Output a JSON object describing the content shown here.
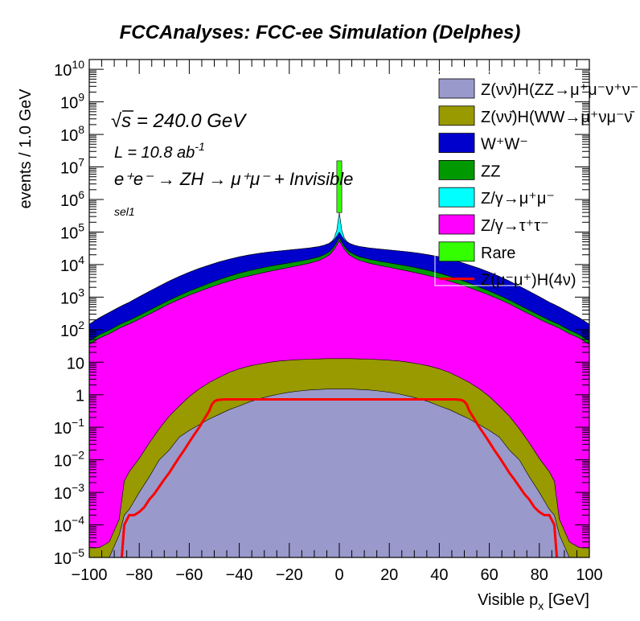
{
  "chart_data": {
    "type": "area",
    "title": "FCCAnalyses: FCC-ee Simulation (Delphes)",
    "xlabel_main": "Visible p",
    "xlabel_sub": "x",
    "xlabel_unit": " [GeV]",
    "ylabel": "events / 1.0 GeV",
    "xlim": [
      -100,
      100
    ],
    "ylim": [
      1e-05,
      20000000000.0
    ],
    "yscale": "log",
    "stacked": true,
    "grid": false,
    "legend_position": "top-right",
    "x_ticks": [
      "−100",
      "−80",
      "−60",
      "−40",
      "−20",
      "0",
      "20",
      "40",
      "60",
      "80",
      "100"
    ],
    "y_ticks": [
      {
        "base": "10",
        "exp": "−5",
        "value": 1e-05
      },
      {
        "base": "10",
        "exp": "−4",
        "value": 0.0001
      },
      {
        "base": "10",
        "exp": "−3",
        "value": 0.001
      },
      {
        "base": "10",
        "exp": "−2",
        "value": 0.01
      },
      {
        "base": "10",
        "exp": "−1",
        "value": 0.1
      },
      {
        "base": "1",
        "exp": "",
        "value": 1
      },
      {
        "base": "10",
        "exp": "",
        "value": 10
      },
      {
        "base": "10",
        "exp": "2",
        "value": 100.0
      },
      {
        "base": "10",
        "exp": "3",
        "value": 1000.0
      },
      {
        "base": "10",
        "exp": "4",
        "value": 10000.0
      },
      {
        "base": "10",
        "exp": "5",
        "value": 100000.0
      },
      {
        "base": "10",
        "exp": "6",
        "value": 1000000.0
      },
      {
        "base": "10",
        "exp": "7",
        "value": 10000000.0
      },
      {
        "base": "10",
        "exp": "8",
        "value": 100000000.0
      },
      {
        "base": "10",
        "exp": "9",
        "value": 1000000000.0
      },
      {
        "base": "10",
        "exp": "10",
        "value": 10000000000.0
      }
    ],
    "annotations": {
      "sqrt_s": "s = 240.0 GeV",
      "lumi_main": "L = 10.8 ab",
      "lumi_exp": "-1",
      "process": "e⁺e⁻ → ZH → μ⁺μ⁻ + Invisible",
      "selection": "sel1"
    },
    "x": [
      -100,
      -96,
      -92,
      -88,
      -86,
      -84,
      -80,
      -76,
      -72,
      -68,
      -64,
      -60,
      -56,
      -52,
      -48,
      -44,
      -40,
      -36,
      -32,
      -28,
      -24,
      -20,
      -16,
      -12,
      -8,
      -6,
      -4,
      -3,
      -2,
      -1,
      0,
      1,
      2,
      3,
      4,
      6,
      8,
      12,
      16,
      20,
      24,
      28,
      32,
      36,
      40,
      44,
      48,
      52,
      56,
      60,
      64,
      68,
      72,
      76,
      80,
      84,
      86,
      88,
      92,
      96,
      100
    ],
    "series": [
      {
        "name": "Z(νν̄)H(ZZ→μ⁺μ⁻ν⁺ν⁻)",
        "color": "#9999cc",
        "values": [
          1e-05,
          1e-05,
          1e-05,
          5e-05,
          0.0002,
          0.0003,
          0.001,
          0.003,
          0.01,
          0.02,
          0.05,
          0.08,
          0.12,
          0.18,
          0.25,
          0.35,
          0.45,
          0.6,
          0.75,
          0.9,
          1.05,
          1.2,
          1.3,
          1.4,
          1.45,
          1.48,
          1.5,
          1.5,
          1.5,
          1.5,
          1.5,
          1.5,
          1.5,
          1.5,
          1.5,
          1.48,
          1.45,
          1.4,
          1.3,
          1.2,
          1.05,
          0.9,
          0.75,
          0.6,
          0.45,
          0.35,
          0.25,
          0.18,
          0.12,
          0.08,
          0.05,
          0.02,
          0.01,
          0.003,
          0.001,
          0.0003,
          0.0002,
          5e-05,
          1e-05,
          1e-05,
          1e-05
        ]
      },
      {
        "name": "Z(νν̄)H(WW→μ⁺νμ⁻ν̄)",
        "color": "#999900",
        "values": [
          1e-05,
          1e-05,
          2e-05,
          0.0001,
          0.002,
          0.004,
          0.01,
          0.03,
          0.08,
          0.2,
          0.4,
          0.8,
          1.4,
          2.2,
          3.2,
          4.5,
          5.8,
          7,
          8,
          9,
          9.8,
          10.3,
          10.7,
          11,
          11.2,
          11.3,
          11.4,
          11.4,
          11.4,
          11.4,
          11.4,
          11.4,
          11.4,
          11.4,
          11.4,
          11.3,
          11.2,
          11,
          10.7,
          10.3,
          9.8,
          9,
          8,
          7,
          5.8,
          4.5,
          3.2,
          2.2,
          1.4,
          0.8,
          0.4,
          0.2,
          0.08,
          0.03,
          0.01,
          0.004,
          0.002,
          0.0001,
          2e-05,
          1e-05,
          1e-05
        ]
      },
      {
        "name": "Z/γ→τ⁺τ⁻",
        "color": "#ff00ff",
        "values": [
          35,
          55,
          75,
          110,
          130,
          150,
          210,
          300,
          430,
          620,
          850,
          1150,
          1500,
          1950,
          2500,
          3100,
          3800,
          4500,
          5300,
          6200,
          7100,
          8200,
          9400,
          11000,
          13500,
          16000,
          20000,
          24000,
          30000,
          40000,
          55000,
          40000,
          30000,
          24000,
          20000,
          16000,
          13500,
          11000,
          9400,
          8200,
          7100,
          6200,
          5300,
          4500,
          3800,
          3100,
          2500,
          1950,
          1500,
          1150,
          850,
          620,
          430,
          300,
          210,
          150,
          130,
          110,
          75,
          55,
          35
        ]
      },
      {
        "name": "ZZ",
        "color": "#009900",
        "values": [
          10,
          15,
          22,
          32,
          38,
          45,
          65,
          95,
          135,
          190,
          270,
          380,
          520,
          720,
          980,
          1300,
          1650,
          2000,
          2300,
          2600,
          2850,
          3050,
          3250,
          3500,
          3900,
          4200,
          4700,
          5300,
          6500,
          8500,
          12000,
          8500,
          6500,
          5300,
          4700,
          4200,
          3900,
          3500,
          3250,
          3050,
          2850,
          2600,
          2300,
          2000,
          1650,
          1300,
          980,
          720,
          520,
          380,
          270,
          190,
          135,
          95,
          65,
          45,
          38,
          32,
          22,
          15,
          10
        ]
      },
      {
        "name": "W⁺W⁻",
        "color": "#0000cc",
        "values": [
          100,
          160,
          240,
          350,
          420,
          500,
          750,
          1100,
          1600,
          2300,
          3200,
          4300,
          5600,
          7000,
          8600,
          10200,
          11800,
          13300,
          14500,
          15500,
          16200,
          16800,
          17300,
          17800,
          18500,
          19000,
          19800,
          20500,
          22000,
          26000,
          32000,
          26000,
          22000,
          20500,
          19800,
          19000,
          18500,
          17800,
          17300,
          16800,
          16200,
          15500,
          14500,
          13300,
          11800,
          10200,
          8600,
          7000,
          5600,
          4300,
          3200,
          2300,
          1600,
          1100,
          750,
          500,
          420,
          350,
          240,
          160,
          100
        ]
      },
      {
        "name": "Z/γ→μ⁺μ⁻",
        "color": "#00ffff",
        "values": [
          1,
          1,
          1,
          1,
          1,
          1,
          1,
          1,
          2,
          2,
          2,
          3,
          3,
          4,
          5,
          6,
          8,
          10,
          12,
          15,
          20,
          28,
          40,
          70,
          150,
          300,
          800,
          2000,
          8000,
          40000,
          300000,
          40000,
          8000,
          2000,
          800,
          300,
          150,
          70,
          40,
          28,
          20,
          15,
          12,
          10,
          8,
          6,
          5,
          4,
          3,
          3,
          2,
          2,
          2,
          1,
          1,
          1,
          1,
          1,
          1,
          1,
          1
        ]
      },
      {
        "name": "Rare",
        "color": "#33ff00",
        "values": [
          0,
          0,
          0,
          0,
          0,
          0,
          0,
          0,
          0,
          0,
          0,
          0,
          0,
          0,
          0,
          0,
          0,
          0,
          0,
          0,
          0,
          0,
          0,
          0,
          0,
          0,
          0,
          0,
          0,
          0,
          15000000.0,
          0,
          0,
          0,
          0,
          0,
          0,
          0,
          0,
          0,
          0,
          0,
          0,
          0,
          0,
          0,
          0,
          0,
          0,
          0,
          0,
          0,
          0,
          0,
          0,
          0,
          0,
          0,
          0,
          0,
          0
        ]
      }
    ],
    "signal": {
      "name": "Z(μ⁻μ⁺)H(4ν)",
      "color": "#ff0000",
      "x": [
        -87,
        -86,
        -84,
        -82,
        -80,
        -78,
        -76,
        -74,
        -72,
        -70,
        -68,
        -66,
        -64,
        -62,
        -60,
        -58,
        -56,
        -54,
        -52,
        -51,
        -50,
        -49,
        -48,
        -46,
        -44,
        -40,
        -30,
        -20,
        -10,
        0,
        10,
        20,
        30,
        40,
        44,
        46,
        48,
        49,
        50,
        51,
        52,
        54,
        56,
        58,
        60,
        62,
        64,
        66,
        68,
        70,
        72,
        74,
        76,
        78,
        80,
        82,
        84,
        86,
        87
      ],
      "values": [
        1e-05,
        0.0001,
        0.0002,
        0.0002,
        0.00025,
        0.00035,
        0.0006,
        0.0009,
        0.0015,
        0.0025,
        0.004,
        0.007,
        0.012,
        0.02,
        0.035,
        0.06,
        0.1,
        0.18,
        0.32,
        0.5,
        0.62,
        0.68,
        0.7,
        0.72,
        0.72,
        0.72,
        0.72,
        0.72,
        0.72,
        0.72,
        0.72,
        0.72,
        0.72,
        0.72,
        0.72,
        0.72,
        0.7,
        0.68,
        0.62,
        0.5,
        0.32,
        0.18,
        0.1,
        0.06,
        0.035,
        0.02,
        0.012,
        0.007,
        0.004,
        0.0025,
        0.0015,
        0.0009,
        0.0006,
        0.00035,
        0.00025,
        0.0002,
        0.0002,
        0.0001,
        1e-05
      ]
    },
    "legend": [
      {
        "label": "Z(νν̄)H(ZZ→μ⁺μ⁻ν⁺ν⁻",
        "color": "#9999cc",
        "kind": "box"
      },
      {
        "label": "Z(νν̄)H(WW→μ⁺νμ⁻ν̄",
        "color": "#999900",
        "kind": "box"
      },
      {
        "label": "W⁺W⁻",
        "color": "#0000cc",
        "kind": "box"
      },
      {
        "label": "ZZ",
        "color": "#009900",
        "kind": "box"
      },
      {
        "label": "Z/γ→μ⁺μ⁻",
        "color": "#00ffff",
        "kind": "box"
      },
      {
        "label": "Z/γ→τ⁺τ⁻",
        "color": "#ff00ff",
        "kind": "box"
      },
      {
        "label": "Rare",
        "color": "#33ff00",
        "kind": "box"
      },
      {
        "label": "Z(μ⁻μ⁺)H(4ν)",
        "color": "#ff0000",
        "kind": "line"
      }
    ]
  }
}
